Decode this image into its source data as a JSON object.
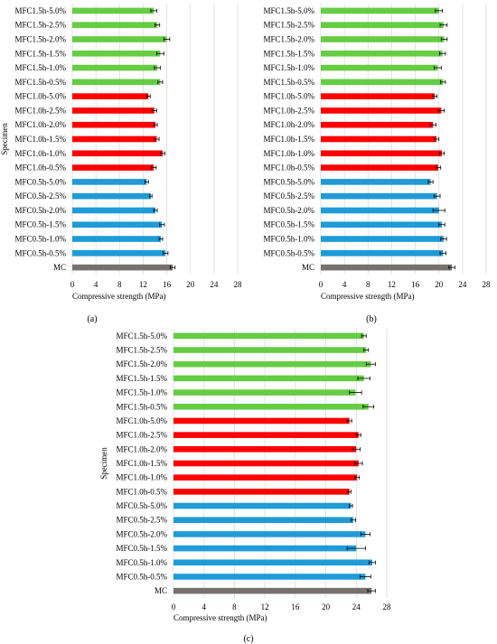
{
  "chart_data": [
    {
      "type": "bar",
      "orientation": "horizontal",
      "panel_label": "(a)",
      "categories": [
        "MC",
        "MFC0.5h-0.5%",
        "MFC0.5h-1.0%",
        "MFC0.5h-1.5%",
        "MFC0.5h-2.0%",
        "MFC0.5h-2.5%",
        "MFC0.5h-5.0%",
        "MFC1.0h-0.5%",
        "MFC1.0h-1.0%",
        "MFC1.0h-1.5%",
        "MFC1.0h-2.0%",
        "MFC1.0h-2.5%",
        "MFC1.0h-5.0%",
        "MFC1.5h-0.5%",
        "MFC1.5h-1.0%",
        "MFC1.5h-1.5%",
        "MFC1.5h-2.0%",
        "MFC1.5h-2.5%",
        "MFC1.5h-5.0%"
      ],
      "values": [
        17.0,
        15.8,
        15.0,
        15.2,
        14.1,
        13.3,
        12.6,
        13.8,
        15.3,
        14.3,
        14.1,
        13.9,
        12.9,
        14.9,
        14.4,
        14.9,
        16.0,
        14.4,
        13.8
      ],
      "errors": [
        0.4,
        0.4,
        0.3,
        0.4,
        0.3,
        0.2,
        0.3,
        0.4,
        0.4,
        0.4,
        0.3,
        0.4,
        0.3,
        0.4,
        0.5,
        0.6,
        0.5,
        0.4,
        0.5
      ],
      "colors": [
        "#767171",
        "#1f9bd7",
        "#1f9bd7",
        "#1f9bd7",
        "#1f9bd7",
        "#1f9bd7",
        "#1f9bd7",
        "#ff0000",
        "#ff0000",
        "#ff0000",
        "#ff0000",
        "#ff0000",
        "#ff0000",
        "#66cc44",
        "#66cc44",
        "#66cc44",
        "#66cc44",
        "#66cc44",
        "#66cc44"
      ],
      "xlabel": "Compressive strength (MPa)",
      "ylabel": "Specimen",
      "xticks": [
        "0",
        "4",
        "8",
        "12",
        "16",
        "20",
        "24",
        "28"
      ],
      "xlim": [
        0,
        28
      ],
      "grid": true
    },
    {
      "type": "bar",
      "orientation": "horizontal",
      "panel_label": "(b)",
      "categories": [
        "MC",
        "MFC0.5h-0.5%",
        "MFC0.5h-1.0%",
        "MFC0.5h-1.5%",
        "MFC0.5h-2.0%",
        "MFC0.5h-2.5%",
        "MFC0.5h-5.0%",
        "MFC1.0h-0.5%",
        "MFC1.0h-1.0%",
        "MFC1.0h-1.5%",
        "MFC1.0h-2.0%",
        "MFC1.0h-2.5%",
        "MFC1.0h-5.0%",
        "MFC1.5h-0.5%",
        "MFC1.5h-1.0%",
        "MFC1.5h-1.5%",
        "MFC1.5h-2.0%",
        "MFC1.5h-2.5%",
        "MFC1.5h-5.0%"
      ],
      "values": [
        22.2,
        20.7,
        20.8,
        20.5,
        20.0,
        19.7,
        18.6,
        19.9,
        20.5,
        19.6,
        19.0,
        20.4,
        19.3,
        20.7,
        19.8,
        20.6,
        20.9,
        20.8,
        20.0
      ],
      "errors": [
        0.5,
        0.5,
        0.5,
        0.5,
        1.0,
        0.5,
        0.4,
        0.4,
        0.4,
        0.4,
        0.5,
        0.5,
        0.4,
        0.4,
        0.6,
        0.5,
        0.5,
        0.6,
        0.6
      ],
      "colors": [
        "#767171",
        "#1f9bd7",
        "#1f9bd7",
        "#1f9bd7",
        "#1f9bd7",
        "#1f9bd7",
        "#1f9bd7",
        "#ff0000",
        "#ff0000",
        "#ff0000",
        "#ff0000",
        "#ff0000",
        "#ff0000",
        "#66cc44",
        "#66cc44",
        "#66cc44",
        "#66cc44",
        "#66cc44",
        "#66cc44"
      ],
      "xlabel": "Compressive strength (MPa)",
      "ylabel": "",
      "xticks": [
        "0",
        "4",
        "8",
        "12",
        "16",
        "20",
        "24",
        "28"
      ],
      "xlim": [
        0,
        28
      ],
      "grid": true
    },
    {
      "type": "bar",
      "orientation": "horizontal",
      "panel_label": "(c)",
      "categories": [
        "MC",
        "MFC0.5h-0.5%",
        "MFC0.5h-1.0%",
        "MFC0.5h-1.5%",
        "MFC0.5h-2.0%",
        "MFC0.5h-2.5%",
        "MFC0.5h-5.0%",
        "MFC1.0h-0.5%",
        "MFC1.0h-1.0%",
        "MFC1.0h-1.5%",
        "MFC1.0h-2.0%",
        "MFC1.0h-2.5%",
        "MFC1.0h-5.0%",
        "MFC1.5h-0.5%",
        "MFC1.5h-1.0%",
        "MFC1.5h-1.5%",
        "MFC1.5h-2.0%",
        "MFC1.5h-2.5%",
        "MFC1.5h-5.0%"
      ],
      "values": [
        26.0,
        25.2,
        26.1,
        24.0,
        25.2,
        23.6,
        23.3,
        23.1,
        24.1,
        24.3,
        24.0,
        24.3,
        23.1,
        25.6,
        23.9,
        25.0,
        25.9,
        25.3,
        25.0
      ],
      "errors": [
        0.5,
        0.7,
        0.4,
        1.2,
        0.6,
        0.3,
        0.2,
        0.2,
        0.3,
        0.5,
        0.5,
        0.3,
        0.3,
        0.7,
        0.8,
        0.8,
        0.6,
        0.3,
        0.3
      ],
      "colors": [
        "#767171",
        "#1f9bd7",
        "#1f9bd7",
        "#1f9bd7",
        "#1f9bd7",
        "#1f9bd7",
        "#1f9bd7",
        "#ff0000",
        "#ff0000",
        "#ff0000",
        "#ff0000",
        "#ff0000",
        "#ff0000",
        "#66cc44",
        "#66cc44",
        "#66cc44",
        "#66cc44",
        "#66cc44",
        "#66cc44"
      ],
      "xlabel": "Compressive strength (MPa)",
      "ylabel": "Specimen",
      "xticks": [
        "0",
        "4",
        "8",
        "12",
        "16",
        "20",
        "24",
        "28"
      ],
      "xlim": [
        0,
        28
      ],
      "grid": true
    }
  ]
}
